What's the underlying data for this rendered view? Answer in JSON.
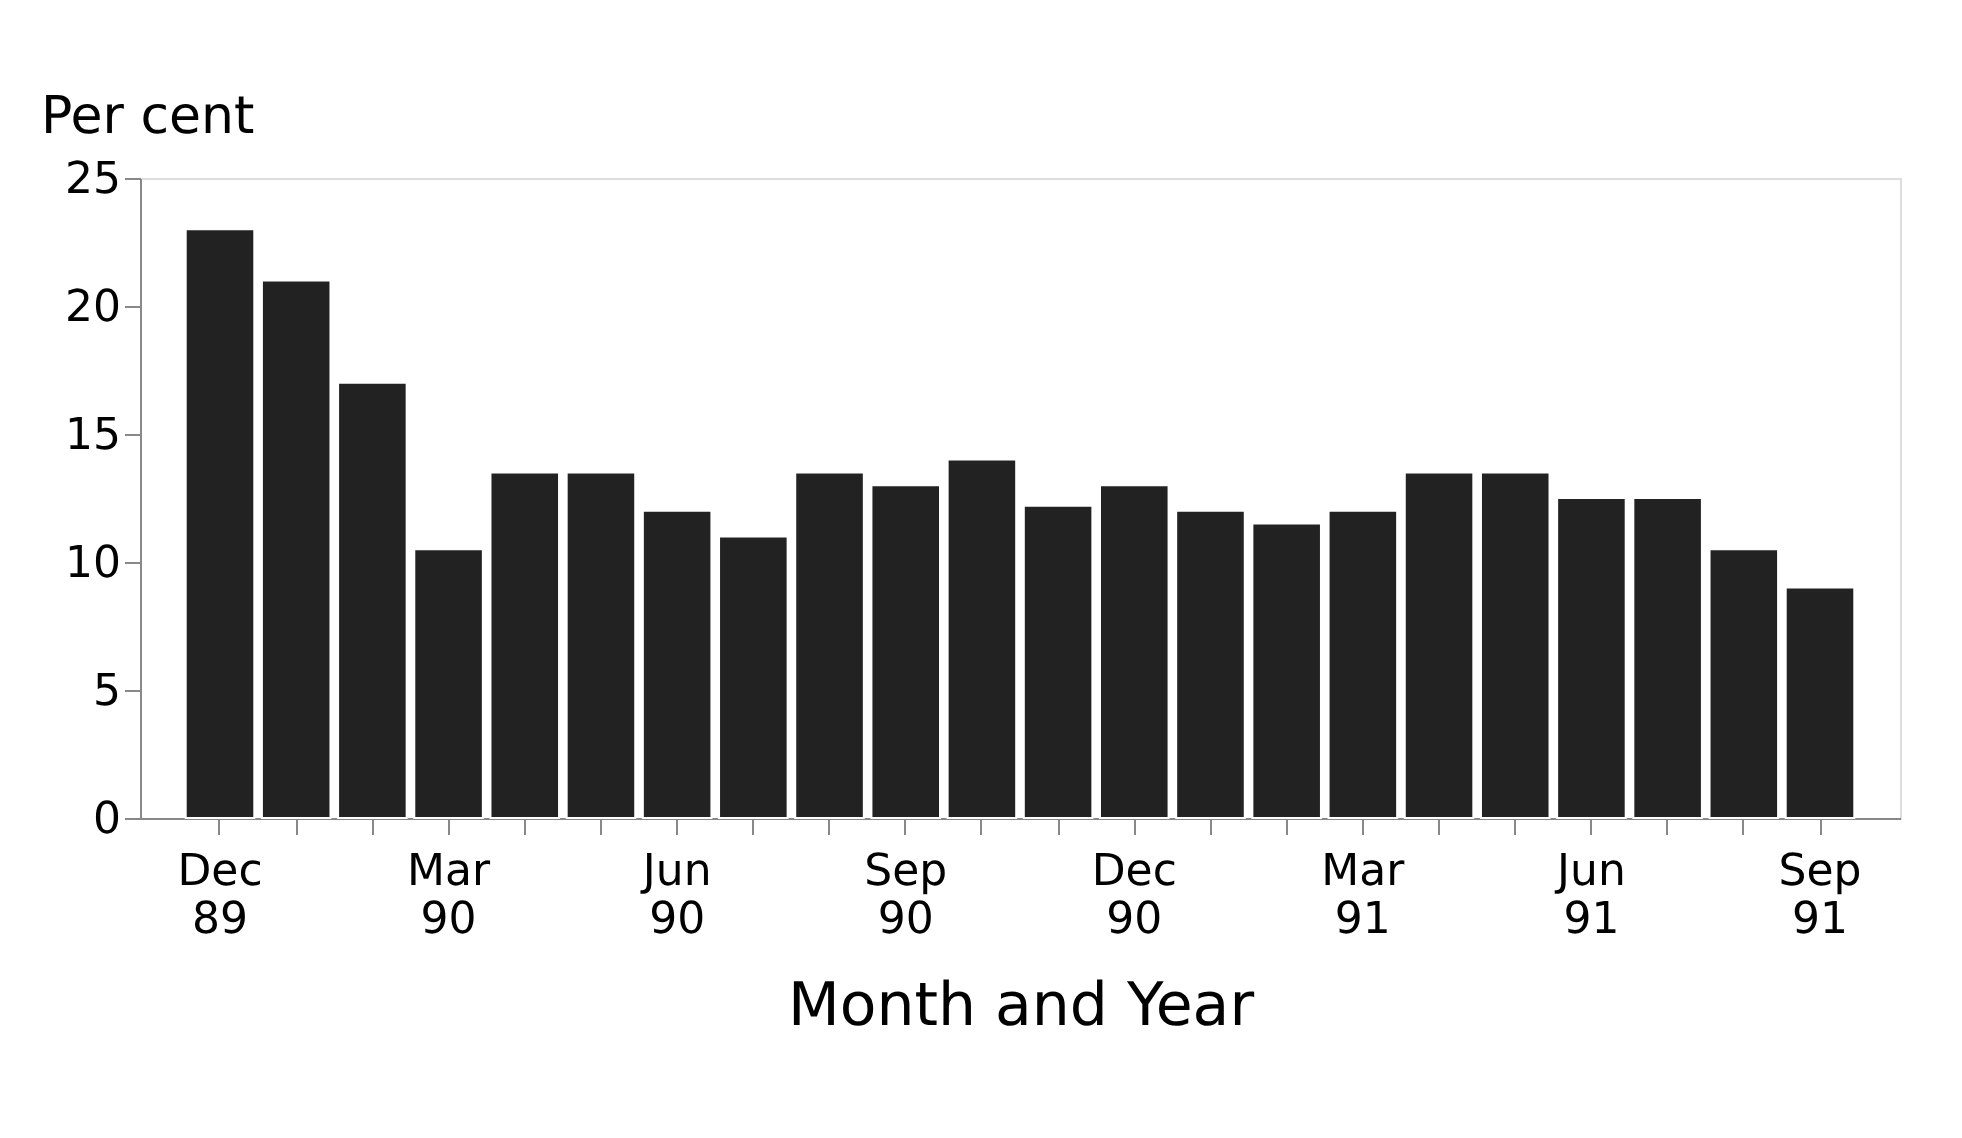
{
  "chart_data": {
    "type": "bar",
    "ylabel": "Per cent",
    "xlabel": "Month and Year",
    "categories": [
      "Dec 89",
      null,
      null,
      "Mar 90",
      null,
      null,
      "Jun 90",
      null,
      null,
      "Sep 90",
      null,
      null,
      "Dec 90",
      null,
      null,
      "Mar 91",
      null,
      null,
      "Jun 91",
      null,
      null,
      "Sep 91"
    ],
    "values": [
      23,
      21,
      17,
      10.5,
      13.5,
      13.5,
      12,
      11,
      13.5,
      13,
      14,
      12.2,
      13,
      12,
      11.5,
      12,
      13.5,
      13.5,
      12.5,
      12.5,
      10.5,
      9
    ],
    "color": "#222222",
    "ylim": [
      0,
      25
    ],
    "yticks": [
      0,
      5,
      10,
      15,
      20,
      25
    ],
    "grid": false
  }
}
